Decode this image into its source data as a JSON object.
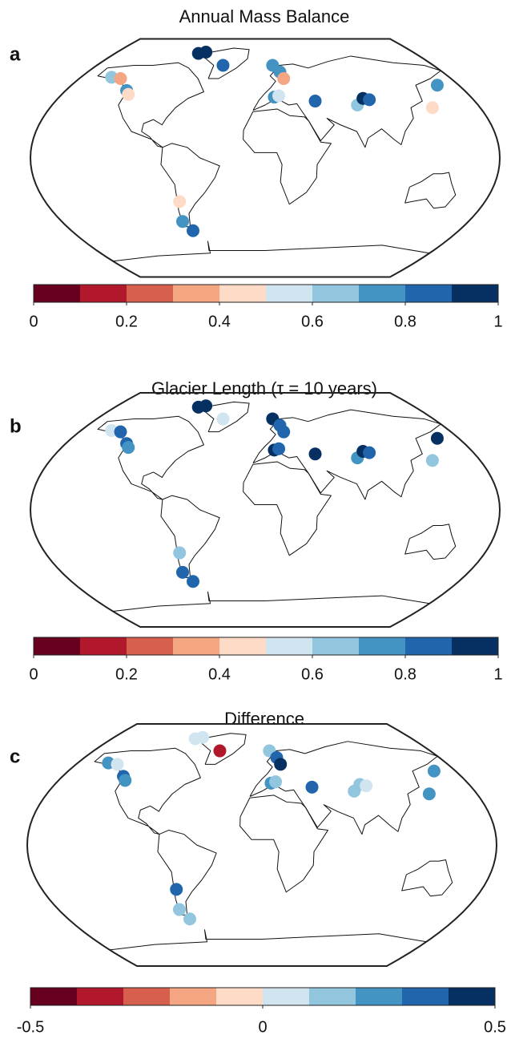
{
  "chart_data": [
    {
      "type": "scatter-map",
      "panel_label": "a",
      "title": "Annual Mass Balance",
      "points": {
        "lon": [
          -150,
          -140,
          -125,
          -121,
          -80,
          -72,
          -45,
          8,
          15,
          18,
          8,
          12,
          43,
          78,
          85,
          90,
          160,
          140,
          -70,
          -73,
          -67
        ],
        "lat": [
          61,
          60,
          51,
          48,
          79,
          80,
          70,
          70,
          65,
          60,
          46,
          47,
          43,
          40,
          45,
          44,
          55,
          38,
          -33,
          -48,
          -55
        ],
        "values": [
          0.65,
          0.35,
          0.75,
          0.45,
          0.95,
          0.95,
          0.85,
          0.75,
          0.75,
          0.35,
          0.75,
          0.55,
          0.85,
          0.65,
          0.95,
          0.85,
          0.75,
          0.45,
          0.45,
          0.75,
          0.85
        ]
      },
      "colorbar": {
        "lim": [
          0,
          1
        ],
        "ticks": [
          0,
          0.2,
          0.4,
          0.6,
          0.8,
          1
        ],
        "colors": [
          "#67001f",
          "#b2182b",
          "#d6604d",
          "#f4a582",
          "#fddbc7",
          "#d1e5f0",
          "#92c5de",
          "#4393c3",
          "#2166ac",
          "#053061"
        ]
      }
    },
    {
      "type": "scatter-map",
      "panel_label": "b",
      "title": "Glacier Length (τ = 10 years)",
      "points": {
        "lon": [
          -150,
          -140,
          -125,
          -121,
          -80,
          -72,
          -45,
          8,
          15,
          18,
          8,
          12,
          43,
          78,
          85,
          90,
          160,
          140,
          -70,
          -73,
          -67
        ],
        "lat": [
          61,
          60,
          51,
          48,
          79,
          80,
          70,
          70,
          65,
          60,
          46,
          47,
          43,
          40,
          45,
          44,
          55,
          38,
          -33,
          -48,
          -55
        ],
        "values": [
          0.55,
          0.85,
          0.85,
          0.75,
          0.95,
          0.95,
          0.55,
          0.95,
          0.85,
          0.85,
          0.95,
          0.85,
          0.95,
          0.75,
          0.95,
          0.85,
          0.95,
          0.65,
          0.65,
          0.85,
          0.85
        ]
      },
      "colorbar": {
        "lim": [
          0,
          1
        ],
        "ticks": [
          0,
          0.2,
          0.4,
          0.6,
          0.8,
          1
        ],
        "colors": [
          "#67001f",
          "#b2182b",
          "#d6604d",
          "#f4a582",
          "#fddbc7",
          "#d1e5f0",
          "#92c5de",
          "#4393c3",
          "#2166ac",
          "#053061"
        ]
      }
    },
    {
      "type": "scatter-map",
      "panel_label": "c",
      "title": "Difference",
      "points": {
        "lon": [
          -150,
          -140,
          -125,
          -121,
          -80,
          -72,
          -45,
          8,
          15,
          18,
          8,
          12,
          43,
          78,
          85,
          90,
          160,
          140,
          -70,
          -73,
          -67
        ],
        "lat": [
          61,
          60,
          51,
          48,
          79,
          80,
          70,
          70,
          65,
          60,
          46,
          47,
          43,
          40,
          45,
          44,
          55,
          38,
          -33,
          -48,
          -55
        ],
        "values": [
          0.25,
          0.05,
          0.35,
          0.25,
          0.05,
          0.05,
          -0.35,
          0.15,
          0.35,
          0.45,
          0.25,
          0.15,
          0.35,
          0.15,
          0.15,
          0.05,
          0.25,
          0.25,
          0.35,
          0.15,
          0.15
        ]
      },
      "colorbar": {
        "lim": [
          -0.5,
          0.5
        ],
        "ticks": [
          -0.5,
          0,
          0.5
        ],
        "colors": [
          "#67001f",
          "#b2182b",
          "#d6604d",
          "#f4a582",
          "#fddbc7",
          "#d1e5f0",
          "#92c5de",
          "#4393c3",
          "#2166ac",
          "#053061"
        ]
      }
    }
  ]
}
